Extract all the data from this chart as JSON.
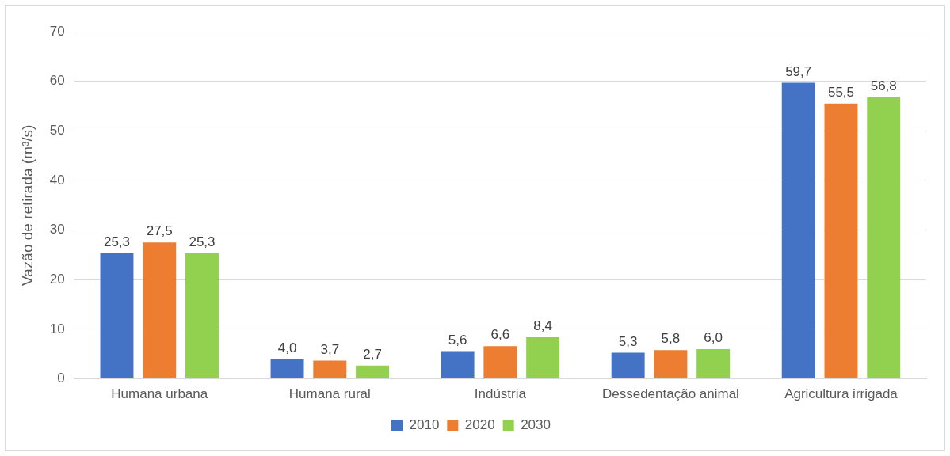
{
  "chart_data": {
    "type": "bar",
    "ylabel": "Vazão de retirada (m³/s)",
    "categories": [
      "Humana urbana",
      "Humana rural",
      "Indústria",
      "Dessedentação animal",
      "Agricultura irrigada"
    ],
    "series": [
      {
        "name": "2010",
        "color": "#4472c4",
        "values": [
          25.3,
          4.0,
          5.6,
          5.3,
          59.7
        ],
        "value_labels": [
          "25,3",
          "4,0",
          "5,6",
          "5,3",
          "59,7"
        ]
      },
      {
        "name": "2020",
        "color": "#ed7d31",
        "values": [
          27.5,
          3.7,
          6.6,
          5.8,
          55.5
        ],
        "value_labels": [
          "27,5",
          "3,7",
          "6,6",
          "5,8",
          "55,5"
        ]
      },
      {
        "name": "2030",
        "color": "#92d050",
        "values": [
          25.3,
          2.7,
          8.4,
          6.0,
          56.8
        ],
        "value_labels": [
          "25,3",
          "2,7",
          "8,4",
          "6,0",
          "56,8"
        ]
      }
    ],
    "ylim": [
      0,
      70
    ],
    "yticks": [
      0,
      10,
      20,
      30,
      40,
      50,
      60,
      70
    ],
    "grid": "y",
    "legend": "bottom"
  }
}
